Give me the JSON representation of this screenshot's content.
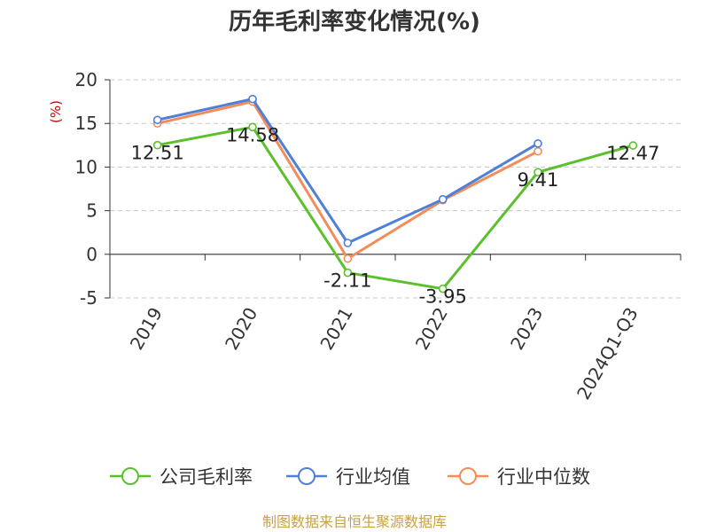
{
  "chart_data": {
    "type": "line",
    "title": "历年毛利率变化情况(%)",
    "ylabel": "(%)",
    "categories": [
      "2019",
      "2020",
      "2021",
      "2022",
      "2023",
      "2024Q1-Q3"
    ],
    "ylim": [
      -5,
      20
    ],
    "yticks": [
      20,
      15,
      10,
      5,
      0,
      -5
    ],
    "grid": true,
    "legend_position": "bottom",
    "series": [
      {
        "name": "公司毛利率",
        "color": "#5cc02c",
        "values": [
          12.51,
          14.58,
          -2.11,
          -3.95,
          9.41,
          12.47
        ],
        "labels": [
          "12.51",
          "14.58",
          "-2.11",
          "-3.95",
          "9.41",
          "12.47"
        ]
      },
      {
        "name": "行业均值",
        "color": "#4f7fd6",
        "values": [
          15.4,
          17.8,
          1.3,
          6.3,
          12.7,
          null
        ]
      },
      {
        "name": "行业中位数",
        "color": "#f48c5a",
        "values": [
          15.0,
          17.5,
          -0.5,
          6.2,
          11.8,
          null
        ]
      }
    ]
  },
  "source": "制图数据来自恒生聚源数据库"
}
